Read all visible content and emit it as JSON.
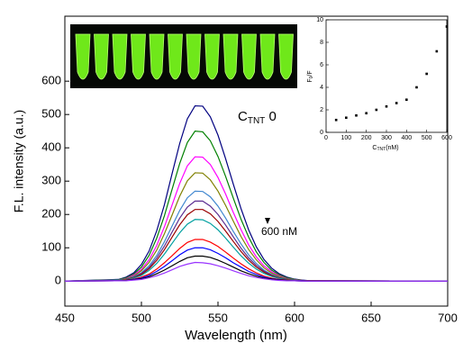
{
  "chart_data": [
    {
      "type": "line",
      "xlabel": "Wavelength (nm)",
      "ylabel": "F.L. intensity (a.u.)",
      "annotation_top": {
        "main": "C",
        "sub": "TNT",
        "rest": " 0"
      },
      "annotation_bottom": "600 nM",
      "x": [
        450,
        485,
        490,
        495,
        500,
        505,
        510,
        515,
        520,
        525,
        530,
        535,
        540,
        545,
        550,
        555,
        560,
        565,
        570,
        575,
        580,
        585,
        590,
        595,
        600,
        605,
        610,
        700
      ],
      "xlim": [
        450,
        700
      ],
      "xticks": [
        450,
        500,
        550,
        600,
        650,
        700
      ],
      "ylim": [
        -75,
        795
      ],
      "yticks": [
        0,
        100,
        200,
        300,
        400,
        500,
        600
      ],
      "series": [
        {
          "color": "#000080",
          "values": [
            0,
            5,
            12,
            25,
            50,
            90,
            151,
            229,
            322,
            413,
            487,
            526,
            525,
            493,
            438,
            367,
            291,
            218,
            154,
            103,
            65,
            39,
            22,
            12,
            6,
            3,
            1,
            0
          ]
        },
        {
          "color": "#008000",
          "values": [
            0,
            4,
            10,
            21,
            42,
            77,
            129,
            196,
            275,
            353,
            416,
            450,
            448,
            421,
            374,
            314,
            249,
            186,
            132,
            88,
            56,
            33,
            19,
            10,
            5,
            2,
            1,
            0
          ]
        },
        {
          "color": "#ff00ff",
          "values": [
            0,
            3,
            8,
            18,
            35,
            64,
            107,
            163,
            228,
            293,
            346,
            373,
            372,
            350,
            311,
            261,
            206,
            155,
            109,
            73,
            46,
            28,
            16,
            8,
            4,
            2,
            1,
            0
          ]
        },
        {
          "color": "#808000",
          "values": [
            0,
            3,
            7,
            15,
            31,
            56,
            93,
            142,
            198,
            255,
            301,
            325,
            324,
            304,
            270,
            227,
            180,
            134,
            95,
            64,
            40,
            24,
            14,
            7,
            4,
            2,
            1,
            0
          ]
        },
        {
          "color": "#3f86cf",
          "values": [
            0,
            3,
            6,
            13,
            25,
            46,
            77,
            118,
            165,
            212,
            250,
            270,
            269,
            253,
            225,
            189,
            149,
            112,
            79,
            53,
            33,
            20,
            11,
            6,
            3,
            1,
            1,
            0
          ]
        },
        {
          "color": "#5c2d91",
          "values": [
            0,
            2,
            5,
            11,
            23,
            41,
            69,
            105,
            147,
            189,
            222,
            240,
            240,
            225,
            200,
            168,
            133,
            99,
            70,
            47,
            30,
            18,
            10,
            5,
            3,
            1,
            1,
            0
          ]
        },
        {
          "color": "#990000",
          "values": [
            0,
            2,
            5,
            10,
            20,
            37,
            62,
            94,
            132,
            169,
            199,
            215,
            215,
            202,
            179,
            150,
            119,
            89,
            63,
            42,
            27,
            16,
            9,
            5,
            2,
            1,
            1,
            0
          ]
        },
        {
          "color": "#00a0a0",
          "values": [
            0,
            2,
            4,
            9,
            17,
            32,
            53,
            81,
            113,
            145,
            171,
            185,
            184,
            173,
            154,
            129,
            102,
            76,
            54,
            36,
            23,
            14,
            8,
            4,
            2,
            1,
            0,
            0
          ]
        },
        {
          "color": "#ff0000",
          "values": [
            0,
            1,
            3,
            6,
            12,
            21,
            36,
            55,
            76,
            98,
            116,
            125,
            125,
            117,
            104,
            87,
            69,
            52,
            37,
            25,
            15,
            9,
            5,
            3,
            1,
            1,
            0,
            0
          ]
        },
        {
          "color": "#0000ff",
          "values": [
            0,
            1,
            2,
            5,
            9,
            17,
            29,
            44,
            61,
            79,
            93,
            100,
            100,
            94,
            83,
            70,
            55,
            42,
            29,
            20,
            12,
            7,
            4,
            2,
            1,
            1,
            0,
            0
          ]
        },
        {
          "color": "#000000",
          "values": [
            0,
            1,
            2,
            4,
            7,
            13,
            22,
            33,
            46,
            59,
            70,
            75,
            75,
            71,
            63,
            53,
            42,
            31,
            22,
            15,
            9,
            6,
            3,
            2,
            1,
            0,
            0,
            0
          ]
        },
        {
          "color": "#9933ff",
          "values": [
            0,
            1,
            1,
            3,
            5,
            10,
            16,
            24,
            34,
            44,
            51,
            56,
            55,
            52,
            46,
            39,
            31,
            23,
            16,
            11,
            7,
            4,
            2,
            1,
            1,
            0,
            0,
            0
          ]
        }
      ]
    },
    {
      "type": "scatter",
      "xlabel": {
        "main": "C",
        "sub": "TNT",
        "rest": "(nM)"
      },
      "ylabel": {
        "main": "F",
        "sub": "0",
        "rest": "/F"
      },
      "x": [
        50,
        100,
        150,
        200,
        250,
        300,
        350,
        400,
        450,
        500,
        550,
        600
      ],
      "values": [
        1.1,
        1.3,
        1.5,
        1.7,
        2.0,
        2.3,
        2.6,
        2.9,
        4.0,
        5.2,
        7.2,
        9.4
      ],
      "color": "#000000",
      "xlim": [
        0,
        600
      ],
      "xticks": [
        0,
        100,
        200,
        300,
        400,
        500,
        600
      ],
      "ylim": [
        0,
        10
      ],
      "yticks": [
        0,
        2,
        4,
        6,
        8,
        10
      ]
    }
  ]
}
